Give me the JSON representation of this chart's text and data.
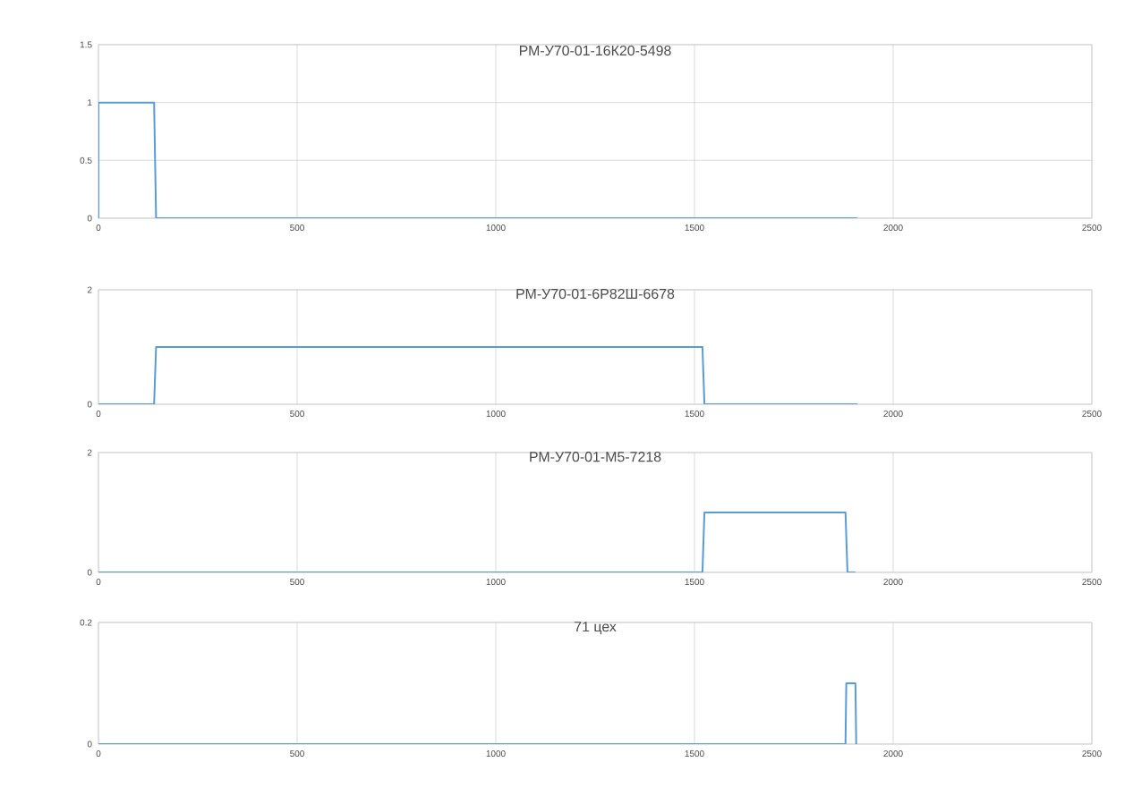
{
  "chart_data": [
    {
      "type": "line",
      "title": "РМ-У70-01-16К20-5498",
      "xlim": [
        0,
        2500
      ],
      "xticks": [
        0,
        500,
        1000,
        1500,
        2000,
        2500
      ],
      "ylim": [
        0,
        1.5
      ],
      "yticks": [
        0,
        0.5,
        1,
        1.5
      ],
      "grid": true,
      "marker": "none",
      "series": [
        {
          "color": "#5b9bd5",
          "x": [
            0,
            0,
            140,
            145,
            1910
          ],
          "values": [
            0,
            1,
            1,
            0,
            0
          ]
        }
      ]
    },
    {
      "type": "line",
      "title": "РМ-У70-01-6Р82Ш-6678",
      "xlim": [
        0,
        2500
      ],
      "xticks": [
        0,
        500,
        1000,
        1500,
        2000,
        2500
      ],
      "ylim": [
        0,
        2
      ],
      "yticks": [
        0,
        2
      ],
      "grid": true,
      "marker": "none",
      "series": [
        {
          "color": "#5b9bd5",
          "x": [
            0,
            140,
            145,
            1520,
            1525,
            1910
          ],
          "values": [
            0,
            0,
            1,
            1,
            0,
            0
          ]
        }
      ]
    },
    {
      "type": "line",
      "title": "РМ-У70-01-М5-7218",
      "xlim": [
        0,
        2500
      ],
      "xticks": [
        0,
        500,
        1000,
        1500,
        2000,
        2500
      ],
      "ylim": [
        0,
        2
      ],
      "yticks": [
        0,
        2
      ],
      "grid": true,
      "marker": "none",
      "series": [
        {
          "color": "#5b9bd5",
          "x": [
            0,
            1520,
            1525,
            1880,
            1885,
            1905
          ],
          "values": [
            0,
            0,
            1,
            1,
            0,
            0
          ]
        }
      ]
    },
    {
      "type": "line",
      "title": "71 цех",
      "xlim": [
        0,
        2500
      ],
      "xticks": [
        0,
        500,
        1000,
        1500,
        2000,
        2500
      ],
      "ylim": [
        0,
        0.2
      ],
      "yticks": [
        0,
        0.2
      ],
      "grid": true,
      "marker": "none",
      "series": [
        {
          "color": "#5b9bd5",
          "x": [
            0,
            1880,
            1882,
            1905,
            1907
          ],
          "values": [
            0,
            0,
            0.1,
            0.1,
            0
          ]
        }
      ]
    }
  ]
}
